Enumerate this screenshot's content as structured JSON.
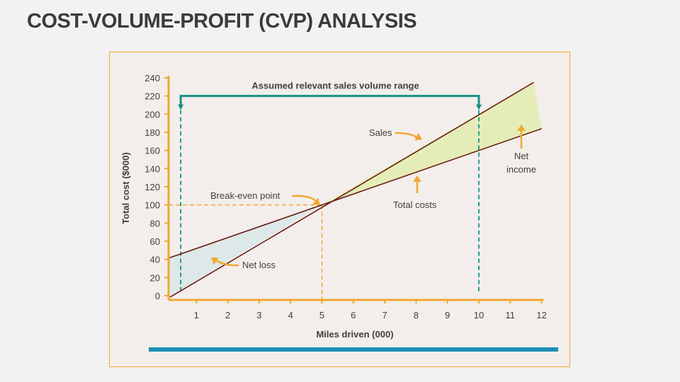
{
  "slide": {
    "title": "COST-VOLUME-PROFIT (CVP) ANALYSIS"
  },
  "chart_data": {
    "type": "line",
    "title": "",
    "xlabel": "Miles driven (000)",
    "ylabel": "Total cost ($000)",
    "xlim": [
      0,
      12
    ],
    "ylim": [
      0,
      240
    ],
    "xticks": [
      1,
      2,
      3,
      4,
      5,
      6,
      7,
      8,
      9,
      10,
      11,
      12
    ],
    "yticks": [
      0,
      20,
      40,
      60,
      80,
      100,
      120,
      140,
      160,
      180,
      200,
      220,
      240
    ],
    "grid": false,
    "series": [
      {
        "name": "Sales",
        "x": [
          0,
          11.75
        ],
        "y": [
          0,
          235
        ]
      },
      {
        "name": "Total costs",
        "x": [
          0,
          12
        ],
        "y": [
          40,
          184
        ]
      }
    ],
    "break_even": {
      "label": "Break-even point",
      "x": 5,
      "y": 100
    },
    "relevant_range": {
      "label": "Assumed relevant sales volume range",
      "x_start": 0.5,
      "x_end": 10,
      "y": 220
    },
    "regions": [
      {
        "label": "Net loss",
        "x_from": 0,
        "x_to": 5,
        "color": "#dde8e8"
      },
      {
        "label": "Net income",
        "x_from": 5,
        "x_to": 12,
        "color": "#e4edb8"
      }
    ],
    "annotations": {
      "sales": "Sales",
      "total_costs": "Total costs",
      "net_income_1": "Net",
      "net_income_2": "income",
      "net_loss": "Net loss"
    },
    "colors": {
      "axis": "#f0a830",
      "lines": "#6b1e12",
      "range": "#14918a",
      "accent_bar": "#1d8fb6"
    }
  }
}
